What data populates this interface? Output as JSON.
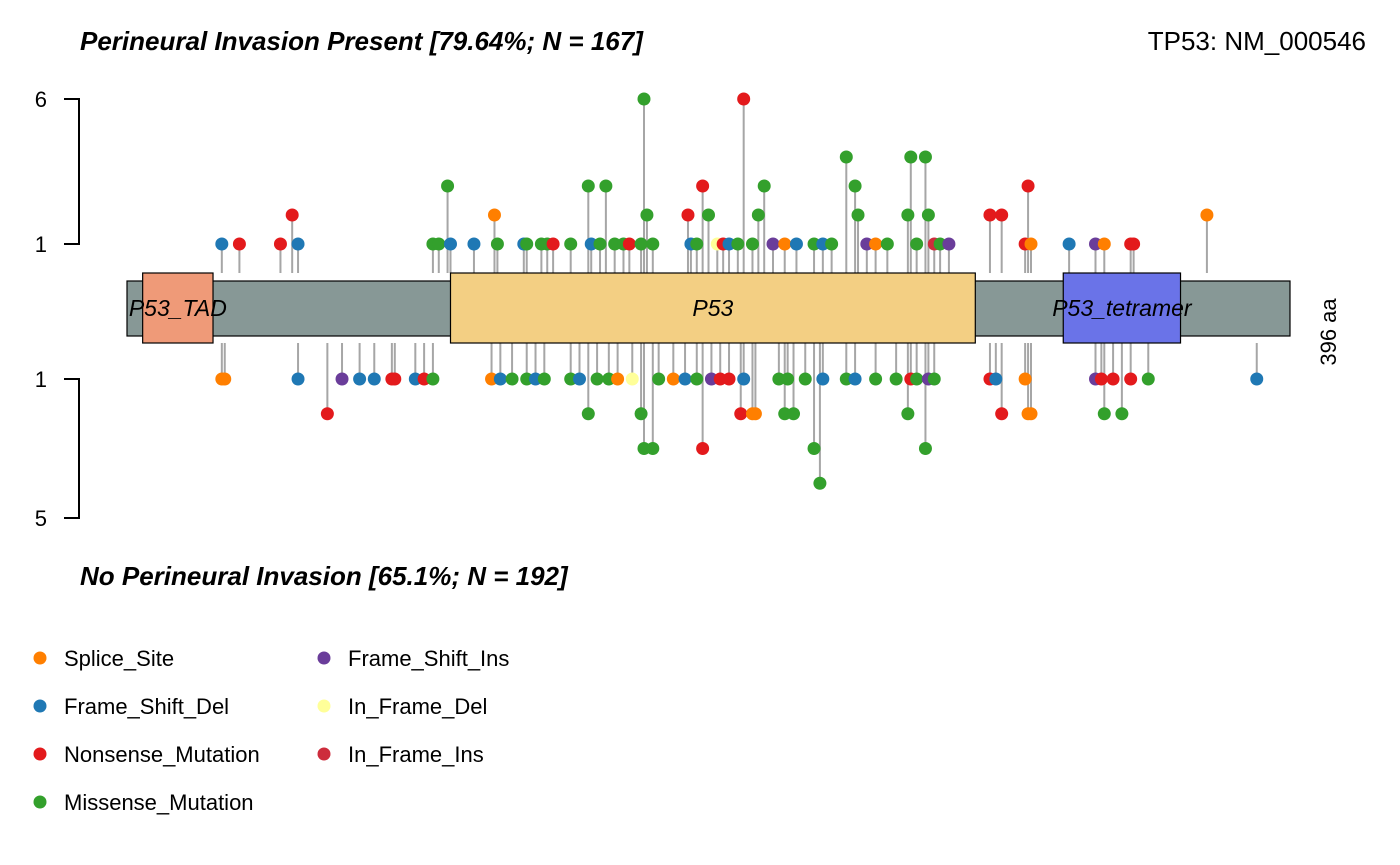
{
  "chart_data": {
    "type": "lollipop",
    "title_top": "Perineural Invasion Present [79.64%; N = 167]",
    "title_bottom": "No Perineural Invasion [65.1%; N = 192]",
    "gene_label": "TP53: NM_000546",
    "protein_length_label": "396 aa",
    "protein_length": 396,
    "top_axis": {
      "ticks": [
        "6",
        "1"
      ]
    },
    "bottom_axis": {
      "ticks": [
        "1",
        "5"
      ]
    },
    "domains": [
      {
        "name": "P53_TAD",
        "start": 5,
        "end": 29,
        "color": "#ef9a78"
      },
      {
        "name": "P53",
        "start": 110,
        "end": 289,
        "color": "#f3cf83"
      },
      {
        "name": "P53_tetramer",
        "start": 319,
        "end": 359,
        "color": "#6a73e8"
      }
    ],
    "legend": [
      {
        "label": "Splice_Site",
        "color": "#ff7f00"
      },
      {
        "label": "Frame_Shift_Del",
        "color": "#1f78b4"
      },
      {
        "label": "Nonsense_Mutation",
        "color": "#e31a1c"
      },
      {
        "label": "Missense_Mutation",
        "color": "#33a02c"
      },
      {
        "label": "Frame_Shift_Ins",
        "color": "#6a3d9a"
      },
      {
        "label": "In_Frame_Del",
        "color": "#ffff99"
      },
      {
        "label": "In_Frame_Ins",
        "color": "#cd2c3c"
      }
    ],
    "mutations_top": [
      {
        "pos": 32,
        "count": 1,
        "type": "Frame_Shift_Del"
      },
      {
        "pos": 38,
        "count": 1,
        "type": "Nonsense_Mutation"
      },
      {
        "pos": 52,
        "count": 1,
        "type": "Nonsense_Mutation"
      },
      {
        "pos": 56,
        "count": 2,
        "type": "Nonsense_Mutation"
      },
      {
        "pos": 58,
        "count": 1,
        "type": "Frame_Shift_Del"
      },
      {
        "pos": 104,
        "count": 1,
        "type": "Missense_Mutation"
      },
      {
        "pos": 106,
        "count": 1,
        "type": "Missense_Mutation"
      },
      {
        "pos": 109,
        "count": 3,
        "type": "Missense_Mutation"
      },
      {
        "pos": 110,
        "count": 1,
        "type": "Frame_Shift_Del"
      },
      {
        "pos": 118,
        "count": 1,
        "type": "Frame_Shift_Del"
      },
      {
        "pos": 125,
        "count": 2,
        "type": "Splice_Site"
      },
      {
        "pos": 126,
        "count": 1,
        "type": "Missense_Mutation"
      },
      {
        "pos": 135,
        "count": 1,
        "type": "Frame_Shift_Del"
      },
      {
        "pos": 136,
        "count": 1,
        "type": "Missense_Mutation"
      },
      {
        "pos": 141,
        "count": 1,
        "type": "Missense_Mutation"
      },
      {
        "pos": 143,
        "count": 1,
        "type": "Missense_Mutation"
      },
      {
        "pos": 145,
        "count": 1,
        "type": "Nonsense_Mutation"
      },
      {
        "pos": 151,
        "count": 1,
        "type": "Missense_Mutation"
      },
      {
        "pos": 157,
        "count": 3,
        "type": "Missense_Mutation"
      },
      {
        "pos": 158,
        "count": 1,
        "type": "Frame_Shift_Del"
      },
      {
        "pos": 161,
        "count": 1,
        "type": "Missense_Mutation"
      },
      {
        "pos": 163,
        "count": 3,
        "type": "Missense_Mutation"
      },
      {
        "pos": 166,
        "count": 1,
        "type": "Missense_Mutation"
      },
      {
        "pos": 169,
        "count": 1,
        "type": "Missense_Mutation"
      },
      {
        "pos": 171,
        "count": 1,
        "type": "Nonsense_Mutation"
      },
      {
        "pos": 175,
        "count": 1,
        "type": "Missense_Mutation"
      },
      {
        "pos": 176,
        "count": 6,
        "type": "Missense_Mutation"
      },
      {
        "pos": 177,
        "count": 2,
        "type": "Missense_Mutation"
      },
      {
        "pos": 179,
        "count": 1,
        "type": "Missense_Mutation"
      },
      {
        "pos": 191,
        "count": 2,
        "type": "Nonsense_Mutation"
      },
      {
        "pos": 192,
        "count": 1,
        "type": "Frame_Shift_Del"
      },
      {
        "pos": 194,
        "count": 1,
        "type": "Missense_Mutation"
      },
      {
        "pos": 196,
        "count": 3,
        "type": "Nonsense_Mutation"
      },
      {
        "pos": 198,
        "count": 2,
        "type": "Missense_Mutation"
      },
      {
        "pos": 201,
        "count": 1,
        "type": "In_Frame_Del"
      },
      {
        "pos": 203,
        "count": 1,
        "type": "Nonsense_Mutation"
      },
      {
        "pos": 205,
        "count": 1,
        "type": "Frame_Shift_Del"
      },
      {
        "pos": 208,
        "count": 1,
        "type": "Missense_Mutation"
      },
      {
        "pos": 210,
        "count": 6,
        "type": "Nonsense_Mutation"
      },
      {
        "pos": 213,
        "count": 1,
        "type": "Missense_Mutation"
      },
      {
        "pos": 215,
        "count": 2,
        "type": "Missense_Mutation"
      },
      {
        "pos": 217,
        "count": 3,
        "type": "Missense_Mutation"
      },
      {
        "pos": 220,
        "count": 1,
        "type": "Frame_Shift_Ins"
      },
      {
        "pos": 224,
        "count": 1,
        "type": "Splice_Site"
      },
      {
        "pos": 228,
        "count": 1,
        "type": "Frame_Shift_Del"
      },
      {
        "pos": 234,
        "count": 1,
        "type": "Missense_Mutation"
      },
      {
        "pos": 237,
        "count": 1,
        "type": "Frame_Shift_Del"
      },
      {
        "pos": 240,
        "count": 1,
        "type": "Missense_Mutation"
      },
      {
        "pos": 245,
        "count": 4,
        "type": "Missense_Mutation"
      },
      {
        "pos": 248,
        "count": 3,
        "type": "Missense_Mutation"
      },
      {
        "pos": 249,
        "count": 2,
        "type": "Missense_Mutation"
      },
      {
        "pos": 252,
        "count": 1,
        "type": "Frame_Shift_Ins"
      },
      {
        "pos": 255,
        "count": 1,
        "type": "Splice_Site"
      },
      {
        "pos": 259,
        "count": 1,
        "type": "Missense_Mutation"
      },
      {
        "pos": 266,
        "count": 2,
        "type": "Missense_Mutation"
      },
      {
        "pos": 267,
        "count": 4,
        "type": "Missense_Mutation"
      },
      {
        "pos": 269,
        "count": 1,
        "type": "Missense_Mutation"
      },
      {
        "pos": 272,
        "count": 4,
        "type": "Missense_Mutation"
      },
      {
        "pos": 273,
        "count": 2,
        "type": "Missense_Mutation"
      },
      {
        "pos": 275,
        "count": 1,
        "type": "In_Frame_Ins"
      },
      {
        "pos": 277,
        "count": 1,
        "type": "Missense_Mutation"
      },
      {
        "pos": 280,
        "count": 1,
        "type": "Frame_Shift_Ins"
      },
      {
        "pos": 294,
        "count": 2,
        "type": "Nonsense_Mutation"
      },
      {
        "pos": 298,
        "count": 2,
        "type": "Nonsense_Mutation"
      },
      {
        "pos": 306,
        "count": 1,
        "type": "Nonsense_Mutation"
      },
      {
        "pos": 307,
        "count": 3,
        "type": "Nonsense_Mutation"
      },
      {
        "pos": 308,
        "count": 1,
        "type": "Splice_Site"
      },
      {
        "pos": 321,
        "count": 1,
        "type": "Frame_Shift_Del"
      },
      {
        "pos": 330,
        "count": 1,
        "type": "Frame_Shift_Ins"
      },
      {
        "pos": 333,
        "count": 1,
        "type": "Splice_Site"
      },
      {
        "pos": 342,
        "count": 1,
        "type": "Nonsense_Mutation"
      },
      {
        "pos": 343,
        "count": 1,
        "type": "Nonsense_Mutation"
      },
      {
        "pos": 368,
        "count": 2,
        "type": "Splice_Site"
      }
    ],
    "mutations_bottom": [
      {
        "pos": 32,
        "count": 1,
        "type": "Splice_Site"
      },
      {
        "pos": 33,
        "count": 1,
        "type": "Splice_Site"
      },
      {
        "pos": 58,
        "count": 1,
        "type": "Frame_Shift_Del"
      },
      {
        "pos": 68,
        "count": 2,
        "type": "Nonsense_Mutation"
      },
      {
        "pos": 73,
        "count": 1,
        "type": "Frame_Shift_Ins"
      },
      {
        "pos": 79,
        "count": 1,
        "type": "Frame_Shift_Del"
      },
      {
        "pos": 84,
        "count": 1,
        "type": "Frame_Shift_Del"
      },
      {
        "pos": 90,
        "count": 1,
        "type": "Nonsense_Mutation"
      },
      {
        "pos": 91,
        "count": 1,
        "type": "Nonsense_Mutation"
      },
      {
        "pos": 98,
        "count": 1,
        "type": "Frame_Shift_Del"
      },
      {
        "pos": 101,
        "count": 1,
        "type": "Nonsense_Mutation"
      },
      {
        "pos": 104,
        "count": 1,
        "type": "Missense_Mutation"
      },
      {
        "pos": 124,
        "count": 1,
        "type": "Splice_Site"
      },
      {
        "pos": 127,
        "count": 1,
        "type": "Frame_Shift_Del"
      },
      {
        "pos": 131,
        "count": 1,
        "type": "Missense_Mutation"
      },
      {
        "pos": 136,
        "count": 1,
        "type": "Missense_Mutation"
      },
      {
        "pos": 139,
        "count": 1,
        "type": "Frame_Shift_Del"
      },
      {
        "pos": 142,
        "count": 1,
        "type": "Missense_Mutation"
      },
      {
        "pos": 151,
        "count": 1,
        "type": "Missense_Mutation"
      },
      {
        "pos": 154,
        "count": 1,
        "type": "Frame_Shift_Del"
      },
      {
        "pos": 157,
        "count": 2,
        "type": "Missense_Mutation"
      },
      {
        "pos": 160,
        "count": 1,
        "type": "Missense_Mutation"
      },
      {
        "pos": 164,
        "count": 1,
        "type": "Missense_Mutation"
      },
      {
        "pos": 167,
        "count": 1,
        "type": "Splice_Site"
      },
      {
        "pos": 172,
        "count": 1,
        "type": "In_Frame_Del"
      },
      {
        "pos": 175,
        "count": 2,
        "type": "Missense_Mutation"
      },
      {
        "pos": 176,
        "count": 3,
        "type": "Missense_Mutation"
      },
      {
        "pos": 179,
        "count": 3,
        "type": "Missense_Mutation"
      },
      {
        "pos": 181,
        "count": 1,
        "type": "Missense_Mutation"
      },
      {
        "pos": 186,
        "count": 1,
        "type": "Splice_Site"
      },
      {
        "pos": 190,
        "count": 1,
        "type": "Frame_Shift_Del"
      },
      {
        "pos": 194,
        "count": 1,
        "type": "Missense_Mutation"
      },
      {
        "pos": 196,
        "count": 3,
        "type": "Nonsense_Mutation"
      },
      {
        "pos": 199,
        "count": 1,
        "type": "Frame_Shift_Ins"
      },
      {
        "pos": 202,
        "count": 1,
        "type": "Nonsense_Mutation"
      },
      {
        "pos": 205,
        "count": 1,
        "type": "Nonsense_Mutation"
      },
      {
        "pos": 209,
        "count": 2,
        "type": "Nonsense_Mutation"
      },
      {
        "pos": 210,
        "count": 1,
        "type": "Frame_Shift_Del"
      },
      {
        "pos": 213,
        "count": 2,
        "type": "Splice_Site"
      },
      {
        "pos": 214,
        "count": 2,
        "type": "Splice_Site"
      },
      {
        "pos": 222,
        "count": 1,
        "type": "Missense_Mutation"
      },
      {
        "pos": 224,
        "count": 2,
        "type": "Missense_Mutation"
      },
      {
        "pos": 225,
        "count": 1,
        "type": "Missense_Mutation"
      },
      {
        "pos": 227,
        "count": 2,
        "type": "Missense_Mutation"
      },
      {
        "pos": 231,
        "count": 1,
        "type": "Missense_Mutation"
      },
      {
        "pos": 234,
        "count": 3,
        "type": "Missense_Mutation"
      },
      {
        "pos": 236,
        "count": 4,
        "type": "Missense_Mutation"
      },
      {
        "pos": 237,
        "count": 1,
        "type": "Frame_Shift_Del"
      },
      {
        "pos": 245,
        "count": 1,
        "type": "Missense_Mutation"
      },
      {
        "pos": 248,
        "count": 1,
        "type": "Frame_Shift_Del"
      },
      {
        "pos": 255,
        "count": 1,
        "type": "Missense_Mutation"
      },
      {
        "pos": 262,
        "count": 1,
        "type": "Missense_Mutation"
      },
      {
        "pos": 266,
        "count": 2,
        "type": "Missense_Mutation"
      },
      {
        "pos": 267,
        "count": 1,
        "type": "Nonsense_Mutation"
      },
      {
        "pos": 269,
        "count": 1,
        "type": "Missense_Mutation"
      },
      {
        "pos": 272,
        "count": 3,
        "type": "Missense_Mutation"
      },
      {
        "pos": 273,
        "count": 1,
        "type": "Frame_Shift_Ins"
      },
      {
        "pos": 275,
        "count": 1,
        "type": "Missense_Mutation"
      },
      {
        "pos": 294,
        "count": 1,
        "type": "Nonsense_Mutation"
      },
      {
        "pos": 296,
        "count": 1,
        "type": "Frame_Shift_Del"
      },
      {
        "pos": 298,
        "count": 2,
        "type": "Nonsense_Mutation"
      },
      {
        "pos": 306,
        "count": 1,
        "type": "Splice_Site"
      },
      {
        "pos": 307,
        "count": 2,
        "type": "Splice_Site"
      },
      {
        "pos": 308,
        "count": 2,
        "type": "Splice_Site"
      },
      {
        "pos": 330,
        "count": 1,
        "type": "Frame_Shift_Ins"
      },
      {
        "pos": 332,
        "count": 1,
        "type": "Nonsense_Mutation"
      },
      {
        "pos": 333,
        "count": 2,
        "type": "Missense_Mutation"
      },
      {
        "pos": 336,
        "count": 1,
        "type": "Nonsense_Mutation"
      },
      {
        "pos": 339,
        "count": 2,
        "type": "Missense_Mutation"
      },
      {
        "pos": 342,
        "count": 1,
        "type": "Nonsense_Mutation"
      },
      {
        "pos": 348,
        "count": 1,
        "type": "Missense_Mutation"
      },
      {
        "pos": 385,
        "count": 1,
        "type": "Frame_Shift_Del"
      }
    ]
  }
}
